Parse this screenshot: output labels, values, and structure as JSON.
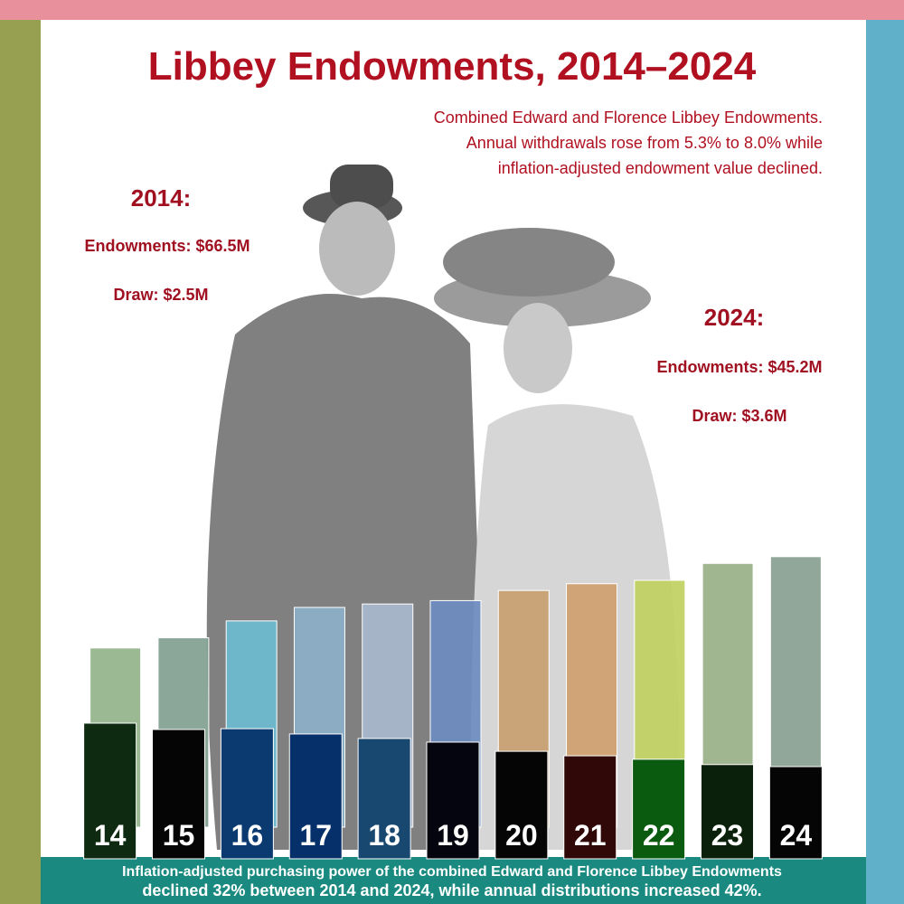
{
  "chart_data": {
    "type": "bar",
    "title": "Libbey Endowments, 2014–2024",
    "subtitle_lines": [
      "Combined Edward and Florence Libbey Endowments.",
      "Annual withdrawals rose from 5.3% to 8.0% while",
      "inflation-adjusted endowment value declined."
    ],
    "annotations": {
      "start": {
        "year": "2014:",
        "endowments": "Endowments: $66.5M",
        "draw": "Draw: $2.5M"
      },
      "end": {
        "year": "2024:",
        "endowments": "Endowments: $45.2M",
        "draw": "Draw: $3.6M"
      }
    },
    "footer_lines": [
      "Inflation-adjusted purchasing power of the combined Edward and Florence Libbey Endowments",
      "declined 32% between 2014 and 2024, while annual distributions increased 42%."
    ],
    "categories": [
      "14",
      "15",
      "16",
      "17",
      "18",
      "19",
      "20",
      "21",
      "22",
      "23",
      "24"
    ],
    "series": [
      {
        "values": [
          5.3,
          5.6,
          6.1,
          6.5,
          6.6,
          6.7,
          7.0,
          7.2,
          7.3,
          7.8,
          8.0
        ],
        "colors": [
          "#93b48a",
          "#80a090",
          "#6cbcd0",
          "#8cb0c8",
          "#a8b8cc",
          "#6c8cc0",
          "#c8a070",
          "#d0a070",
          "#c0d060",
          "#98b088",
          "#88a090"
        ]
      },
      {
        "values": [
          66.5,
          63.4,
          63.8,
          61.2,
          59.0,
          57.2,
          52.7,
          50.5,
          48.8,
          46.2,
          45.2
        ],
        "colors": [
          "#0e2a10",
          "#050505",
          "#0a3a70",
          "#06306a",
          "#184870",
          "#05050f",
          "#050505",
          "#300808",
          "#0a5a10",
          "#0a200a",
          "#050505"
        ]
      }
    ]
  }
}
